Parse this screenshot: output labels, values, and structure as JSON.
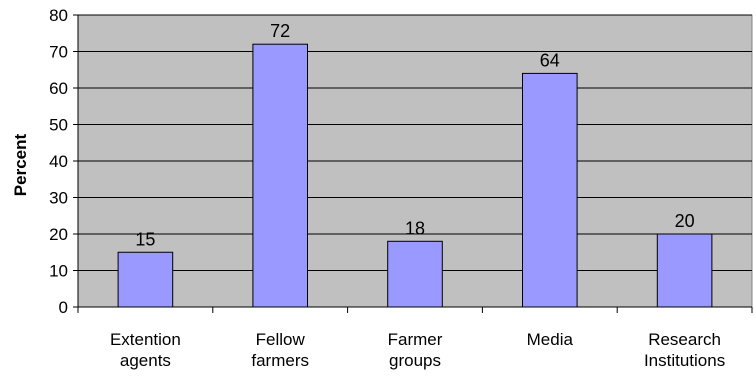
{
  "chart_data": {
    "type": "bar",
    "title": "",
    "xlabel": "",
    "ylabel": "Percent",
    "categories": [
      [
        "Extention",
        "agents"
      ],
      [
        "Fellow",
        "farmers"
      ],
      [
        "Farmer",
        "groups"
      ],
      [
        "Media"
      ],
      [
        "Research",
        "Institutions"
      ]
    ],
    "values": [
      15,
      72,
      18,
      64,
      20
    ],
    "data_labels": [
      "15",
      "72",
      "18",
      "64",
      "20"
    ],
    "ylim": [
      0,
      80
    ],
    "yticks": [
      0,
      10,
      20,
      30,
      40,
      50,
      60,
      70,
      80
    ],
    "grid": true,
    "legend": "none",
    "colors": {
      "plot_background": "#c0c0c0",
      "bar_fill": "#9999ff",
      "bar_stroke": "#000000",
      "grid": "#000000"
    }
  }
}
